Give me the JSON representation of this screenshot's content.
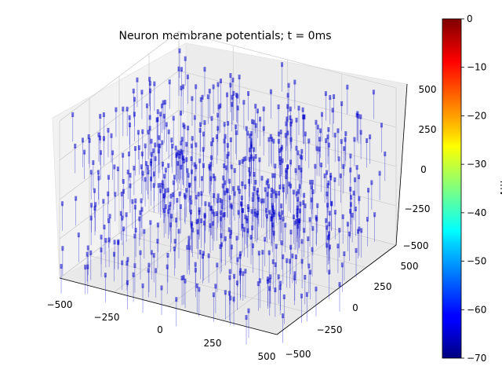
{
  "chart_data": {
    "type": "scatter",
    "title": "Neuron membrane potentials; t = 0ms",
    "x_axis": {
      "ticks": [
        "−500",
        "−250",
        "0",
        "250",
        "500"
      ],
      "range": [
        -500,
        500
      ]
    },
    "y_axis": {
      "ticks": [
        "−500",
        "−250",
        "0",
        "250",
        "500"
      ],
      "range": [
        -500,
        500
      ]
    },
    "z_axis": {
      "ticks": [
        "−500",
        "−250",
        "0",
        "250",
        "500"
      ],
      "range": [
        -500,
        500
      ]
    },
    "colorbar": {
      "label": "mV",
      "range": [
        -70,
        0
      ],
      "colormap": "jet",
      "ticks": [
        "0",
        "−10",
        "−20",
        "−30",
        "−40",
        "−50",
        "−60",
        "−70"
      ]
    },
    "series": [
      {
        "marker_color": "#0000cc",
        "count": 700,
        "value_mV": -70
      }
    ]
  }
}
